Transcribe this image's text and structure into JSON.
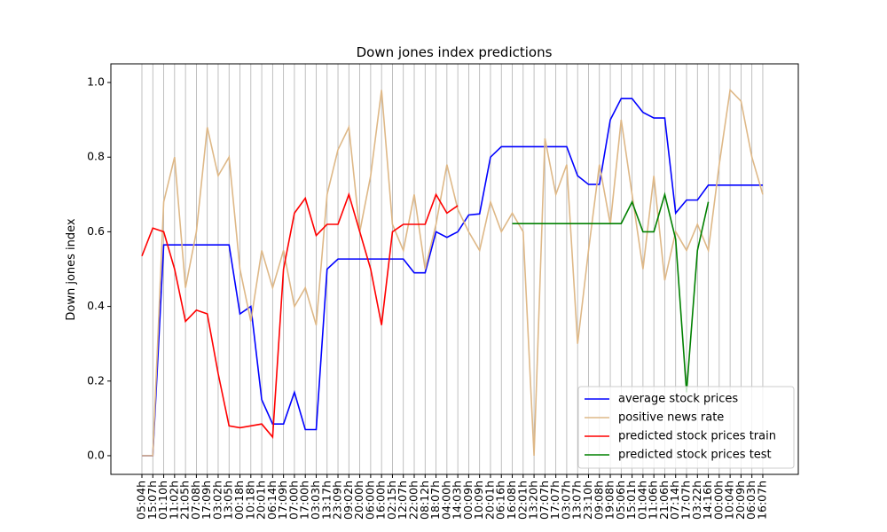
{
  "chart_data": {
    "type": "line",
    "title": "Down jones index predictions",
    "ylabel": "Down jones index",
    "x": [
      0,
      1,
      2,
      3,
      4,
      5,
      6,
      7,
      8,
      9,
      10,
      11,
      12,
      13,
      14,
      15,
      16,
      17,
      18,
      19,
      20,
      21,
      22,
      23,
      24,
      25,
      26,
      27,
      28,
      29,
      30,
      31,
      32,
      33,
      34,
      35,
      36,
      37,
      38,
      39,
      40,
      41,
      42,
      43,
      44,
      45,
      46,
      47,
      48,
      49,
      50,
      51,
      52,
      53,
      54,
      55,
      56,
      57
    ],
    "xlim": [
      -2.85,
      60.26
    ],
    "xticks": [
      {
        "value": 0,
        "label": "05:04h"
      },
      {
        "value": 1,
        "label": "15:07h"
      },
      {
        "value": 2,
        "label": "01:10h"
      },
      {
        "value": 3,
        "label": "11:02h"
      },
      {
        "value": 4,
        "label": "21:05h"
      },
      {
        "value": 5,
        "label": "07:08h"
      },
      {
        "value": 6,
        "label": "17:09h"
      },
      {
        "value": 7,
        "label": "03:02h"
      },
      {
        "value": 8,
        "label": "13:05h"
      },
      {
        "value": 9,
        "label": "00:18h"
      },
      {
        "value": 10,
        "label": "10:18h"
      },
      {
        "value": 11,
        "label": "20:01h"
      },
      {
        "value": 12,
        "label": "06:14h"
      },
      {
        "value": 13,
        "label": "17:09h"
      },
      {
        "value": 14,
        "label": "07:00h"
      },
      {
        "value": 15,
        "label": "17:00h"
      },
      {
        "value": 16,
        "label": "03:03h"
      },
      {
        "value": 17,
        "label": "13:17h"
      },
      {
        "value": 18,
        "label": "23:09h"
      },
      {
        "value": 19,
        "label": "09:02h"
      },
      {
        "value": 20,
        "label": "20:00h"
      },
      {
        "value": 21,
        "label": "06:00h"
      },
      {
        "value": 22,
        "label": "16:00h"
      },
      {
        "value": 23,
        "label": "02:15h"
      },
      {
        "value": 24,
        "label": "12:07h"
      },
      {
        "value": 25,
        "label": "22:00h"
      },
      {
        "value": 26,
        "label": "08:12h"
      },
      {
        "value": 27,
        "label": "18:07h"
      },
      {
        "value": 28,
        "label": "04:00h"
      },
      {
        "value": 29,
        "label": "14:03h"
      },
      {
        "value": 30,
        "label": "00:09h"
      },
      {
        "value": 31,
        "label": "10:09h"
      },
      {
        "value": 32,
        "label": "20:01h"
      },
      {
        "value": 33,
        "label": "06:16h"
      },
      {
        "value": 34,
        "label": "16:08h"
      },
      {
        "value": 35,
        "label": "02:01h"
      },
      {
        "value": 36,
        "label": "13:20h"
      },
      {
        "value": 37,
        "label": "07:07h"
      },
      {
        "value": 38,
        "label": "17:07h"
      },
      {
        "value": 39,
        "label": "03:07h"
      },
      {
        "value": 40,
        "label": "13:07h"
      },
      {
        "value": 41,
        "label": "23:10h"
      },
      {
        "value": 42,
        "label": "09:08h"
      },
      {
        "value": 43,
        "label": "19:08h"
      },
      {
        "value": 44,
        "label": "05:06h"
      },
      {
        "value": 45,
        "label": "15:01h"
      },
      {
        "value": 46,
        "label": "01:04h"
      },
      {
        "value": 47,
        "label": "11:06h"
      },
      {
        "value": 48,
        "label": "21:06h"
      },
      {
        "value": 49,
        "label": "07:14h"
      },
      {
        "value": 50,
        "label": "17:07h"
      },
      {
        "value": 51,
        "label": "03:22h"
      },
      {
        "value": 52,
        "label": "14:16h"
      },
      {
        "value": 53,
        "label": "00:00h"
      },
      {
        "value": 54,
        "label": "10:04h"
      },
      {
        "value": 55,
        "label": "20:09h"
      },
      {
        "value": 56,
        "label": "06:03h"
      },
      {
        "value": 57,
        "label": "16:07h"
      }
    ],
    "ylim": [
      -0.05,
      1.05
    ],
    "yticks": [
      {
        "value": 0,
        "label": "0.0"
      },
      0.2,
      0.4,
      0.6,
      0.8,
      {
        "value": 1,
        "label": "1.0"
      }
    ],
    "grid": "x",
    "legend": "lower right",
    "series": [
      {
        "name": "average stock prices",
        "color": "#0000ff",
        "values": [
          0,
          0,
          0.565,
          0.565,
          0.565,
          0.565,
          0.565,
          0.565,
          0.565,
          0.38,
          0.4,
          0.15,
          0.085,
          0.085,
          0.17,
          0.07,
          0.07,
          0.5,
          0.527,
          0.527,
          0.527,
          0.527,
          0.527,
          0.527,
          0.527,
          0.49,
          0.49,
          0.6,
          0.585,
          0.6,
          0.645,
          0.648,
          0.8,
          0.828,
          0.828,
          0.828,
          0.828,
          0.828,
          0.828,
          0.828,
          0.75,
          0.727,
          0.727,
          0.9,
          0.957,
          0.957,
          0.92,
          0.905,
          0.905,
          0.65,
          0.685,
          0.685,
          0.725,
          0.725,
          0.725,
          0.725,
          0.725,
          0.725
        ]
      },
      {
        "name": "positive news rate",
        "color": "#deb887",
        "values": [
          0,
          0,
          0.68,
          0.8,
          0.45,
          0.6,
          0.88,
          0.75,
          0.8,
          0.5,
          0.36,
          0.55,
          0.45,
          0.55,
          0.4,
          0.45,
          0.35,
          0.7,
          0.82,
          0.88,
          0.6,
          0.75,
          0.98,
          0.62,
          0.55,
          0.7,
          0.5,
          0.62,
          0.78,
          0.66,
          0.6,
          0.55,
          0.68,
          0.6,
          0.65,
          0.6,
          0,
          0.85,
          0.7,
          0.78,
          0.3,
          0.55,
          0.78,
          0.62,
          0.9,
          0.7,
          0.5,
          0.75,
          0.47,
          0.6,
          0.55,
          0.62,
          0.55,
          0.78,
          0.98,
          0.95,
          0.8,
          0.7
        ]
      },
      {
        "name": "predicted stock prices train",
        "color": "#ff0000",
        "values": [
          0.535,
          0.61,
          0.6,
          0.5,
          0.36,
          0.39,
          0.38,
          0.22,
          0.08,
          0.075,
          0.08,
          0.085,
          0.05,
          0.5,
          0.65,
          0.69,
          0.59,
          0.62,
          0.62,
          0.7,
          0.6,
          0.5,
          0.35,
          0.6,
          0.62,
          0.62,
          0.62,
          0.7,
          0.65,
          0.67,
          null,
          null,
          null,
          null,
          null,
          null,
          null,
          null,
          null,
          null,
          null,
          null,
          null,
          null,
          null,
          null,
          null,
          null,
          null,
          null,
          null,
          null,
          null,
          null,
          null,
          null,
          null,
          null
        ]
      },
      {
        "name": "predicted stock prices test",
        "color": "#008000",
        "values": [
          null,
          null,
          null,
          null,
          null,
          null,
          null,
          null,
          null,
          null,
          null,
          null,
          null,
          null,
          null,
          null,
          null,
          null,
          null,
          null,
          null,
          null,
          null,
          null,
          null,
          null,
          null,
          null,
          null,
          null,
          null,
          null,
          null,
          null,
          0.622,
          0.622,
          0.622,
          0.622,
          0.622,
          0.622,
          0.622,
          0.622,
          0.622,
          0.622,
          0.622,
          0.68,
          0.6,
          0.6,
          0.7,
          0.58,
          0.17,
          0.55,
          0.68,
          null,
          null,
          null,
          null,
          null
        ]
      }
    ]
  }
}
